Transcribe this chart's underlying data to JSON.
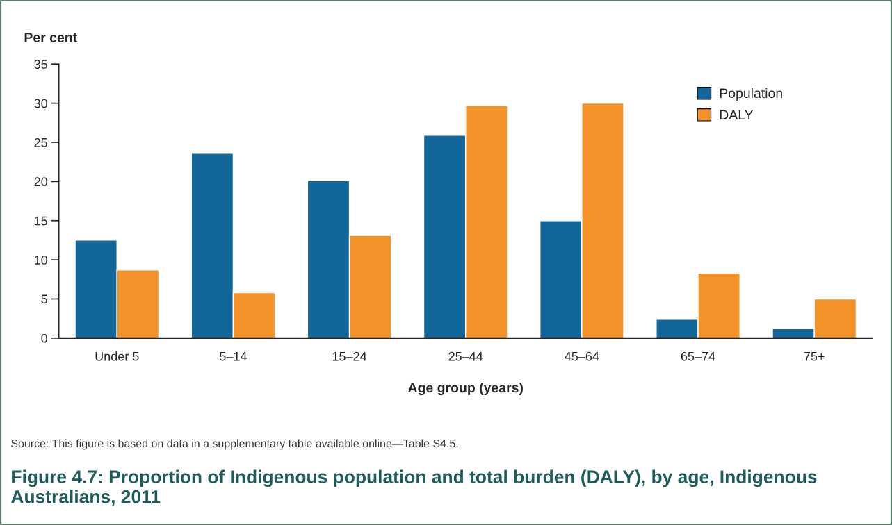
{
  "chart_data": {
    "type": "bar",
    "title": "Figure 4.7: Proportion of Indigenous population and total burden (DALY), by age, Indigenous Australians, 2011",
    "xlabel": "Age group (years)",
    "ylabel": "Per cent",
    "categories": [
      "Under 5",
      "5–14",
      "15–24",
      "25–44",
      "45–64",
      "65–74",
      "75+"
    ],
    "series": [
      {
        "name": "Population",
        "color": "#126699",
        "values": [
          12.5,
          23.6,
          20.1,
          25.9,
          15.0,
          2.4,
          1.2
        ]
      },
      {
        "name": "DALY",
        "color": "#f39229",
        "values": [
          8.7,
          5.8,
          13.1,
          29.7,
          30.0,
          8.3,
          5.0
        ]
      }
    ],
    "ylim": [
      0,
      35
    ],
    "yticks": [
      0,
      5,
      10,
      15,
      20,
      25,
      30,
      35
    ],
    "grid": false,
    "legend": "top right",
    "annotations": [
      "Source: This figure is based on data in a supplementary table available online—Table S4.5."
    ]
  }
}
